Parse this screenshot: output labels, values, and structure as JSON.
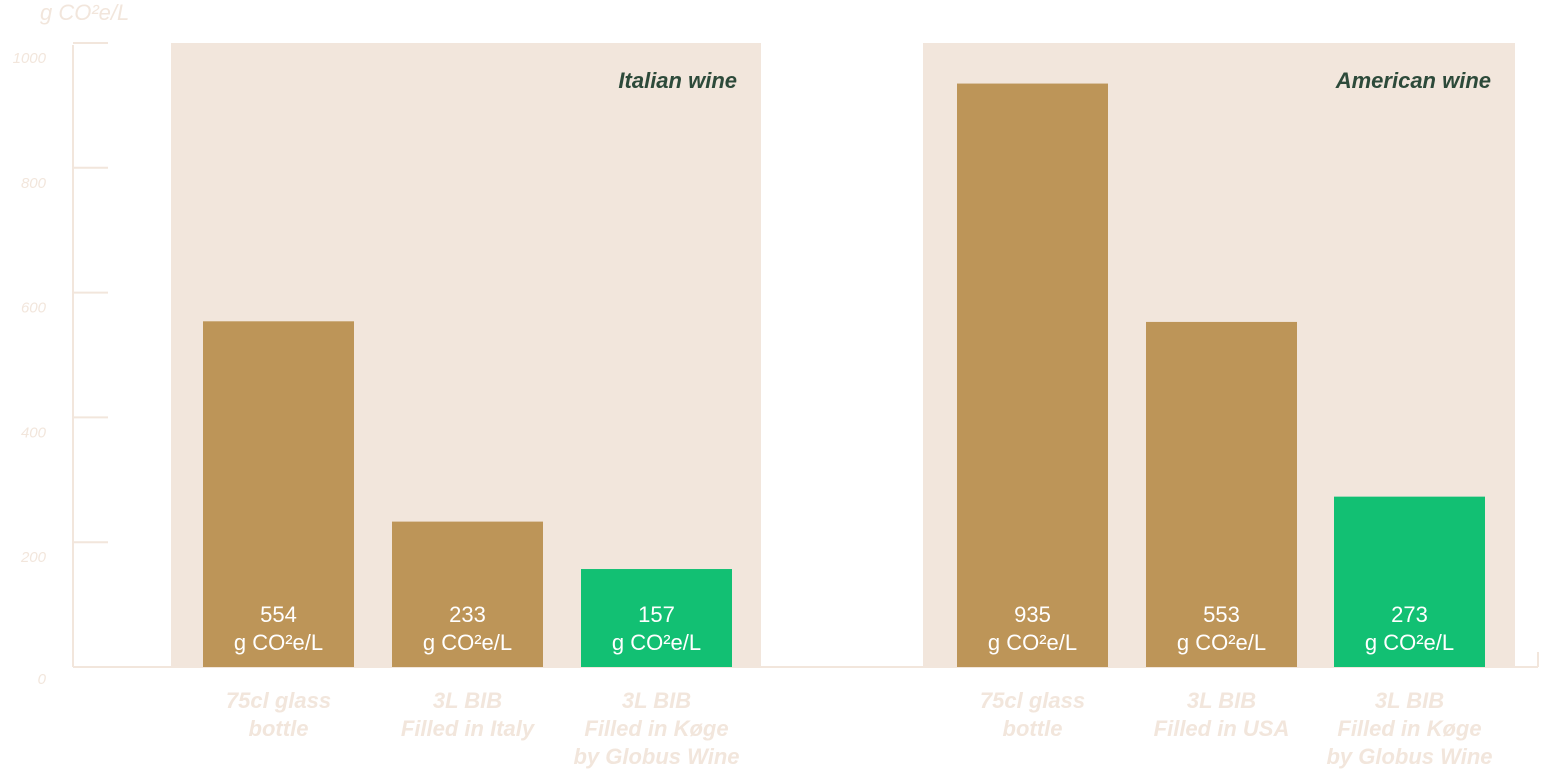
{
  "chart_data": {
    "type": "bar",
    "ylabel": "g CO²e/L",
    "ylim": [
      0,
      1000
    ],
    "yticks": [
      "0",
      "200",
      "400",
      "600",
      "800",
      "1000"
    ],
    "grid": false,
    "unit_label": "g CO²e/L",
    "colors": {
      "standard": "#bd9558",
      "highlight": "#12c073",
      "panel_bg": "#f2e6dc",
      "axis": "#f2e6dc",
      "title": "#2d4a3a"
    },
    "groups": [
      {
        "title": "Italian wine",
        "bars": [
          {
            "label": [
              "75cl glass",
              "bottle"
            ],
            "value": 554,
            "value_text": "554",
            "highlight": false
          },
          {
            "label": [
              "3L BIB",
              "Filled in Italy"
            ],
            "value": 233,
            "value_text": "233",
            "highlight": false
          },
          {
            "label": [
              "3L BIB",
              "Filled in Køge",
              "by Globus Wine"
            ],
            "value": 157,
            "value_text": "157",
            "highlight": true
          }
        ]
      },
      {
        "title": "American wine",
        "bars": [
          {
            "label": [
              "75cl glass",
              "bottle"
            ],
            "value": 935,
            "value_text": "935",
            "highlight": false
          },
          {
            "label": [
              "3L BIB",
              "Filled in USA"
            ],
            "value": 553,
            "value_text": "553",
            "highlight": false
          },
          {
            "label": [
              "3L BIB",
              "Filled in Køge",
              "by Globus Wine"
            ],
            "value": 273,
            "value_text": "273",
            "highlight": true
          }
        ]
      }
    ]
  }
}
